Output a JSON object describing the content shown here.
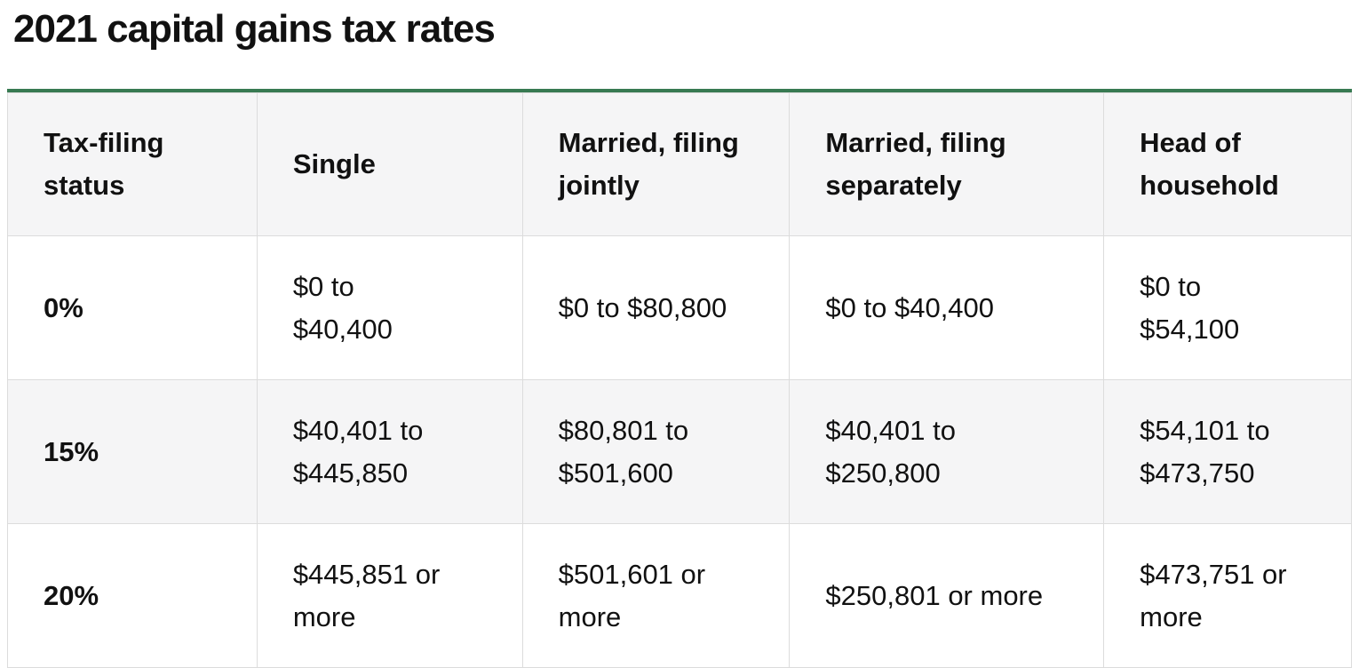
{
  "page": {
    "title": "2021 capital gains tax rates"
  },
  "theme": {
    "accent_green": "#387A52",
    "header_bg": "#F5F5F6",
    "alt_row_bg": "#F5F5F6",
    "border_color": "#DCDCDC",
    "text_color": "#111111",
    "page_bg": "#FFFFFF"
  },
  "table": {
    "columns": [
      "Tax-filing\nstatus",
      "Single",
      "Married, filing\njointly",
      "Married, filing\nseparately",
      "Head of\nhousehold"
    ],
    "rows": [
      {
        "rate": "0%",
        "cells": [
          "$0 to\n$40,400",
          "$0 to $80,800",
          "$0 to $40,400",
          "$0 to\n$54,100"
        ]
      },
      {
        "rate": "15%",
        "cells": [
          "$40,401 to\n$445,850",
          "$80,801 to\n$501,600",
          "$40,401 to\n$250,800",
          "$54,101 to\n$473,750"
        ]
      },
      {
        "rate": "20%",
        "cells": [
          "$445,851 or\nmore",
          "$501,601 or\nmore",
          "$250,801 or more",
          "$473,751 or\nmore"
        ]
      }
    ]
  }
}
